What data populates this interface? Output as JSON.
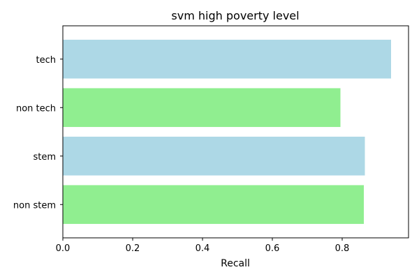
{
  "chart_data": {
    "type": "bar",
    "orientation": "horizontal",
    "title": "svm high poverty level",
    "xlabel": "Recall",
    "ylabel": "",
    "categories": [
      "tech",
      "non tech",
      "stem",
      "non stem"
    ],
    "values": [
      0.94,
      0.795,
      0.865,
      0.862
    ],
    "bar_colors": [
      "#add8e6",
      "#90ee90",
      "#add8e6",
      "#90ee90"
    ],
    "xlim": [
      0,
      0.99
    ],
    "xticks": [
      0.0,
      0.2,
      0.4,
      0.6,
      0.8
    ],
    "xtick_labels": [
      "0.0",
      "0.2",
      "0.4",
      "0.6",
      "0.8"
    ],
    "grid": false,
    "legend": false
  }
}
